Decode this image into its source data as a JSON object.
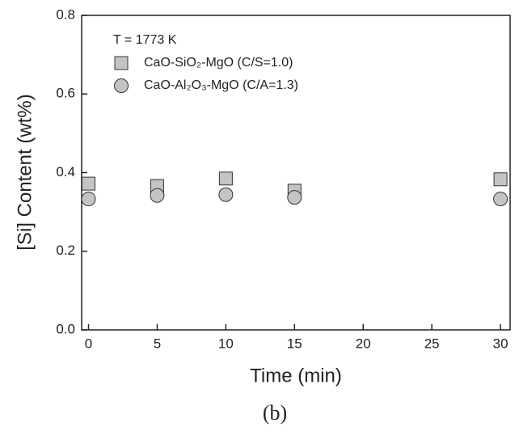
{
  "chart_data": {
    "type": "scatter",
    "annotation": "T = 1773 K",
    "panel_label": "(b)",
    "x_label": "Time (min)",
    "y_label": "[Si] Content (wt%)",
    "xlim": [
      -0.5,
      30.7
    ],
    "xticks": [
      0,
      5,
      10,
      15,
      20,
      25,
      30
    ],
    "ylim": [
      0,
      0.8
    ],
    "yticks": [
      {
        "value": 0,
        "label": "0.0"
      },
      0.2,
      0.4,
      0.6,
      0.8
    ],
    "series": [
      {
        "name": "CaO-SiO₂-MgO (C/S=1.0)",
        "color": "#c4c4c4",
        "marker": "square",
        "x": [
          0,
          5,
          10,
          15,
          30
        ],
        "values": [
          0.372,
          0.366,
          0.385,
          0.354,
          0.383
        ]
      },
      {
        "name": "CaO-Al₂O₃-MgO (C/A=1.3)",
        "color": "#c4c4c4",
        "marker": "circle",
        "x": [
          0,
          5,
          10,
          15,
          30
        ],
        "values": [
          0.333,
          0.342,
          0.344,
          0.337,
          0.333
        ]
      }
    ]
  }
}
